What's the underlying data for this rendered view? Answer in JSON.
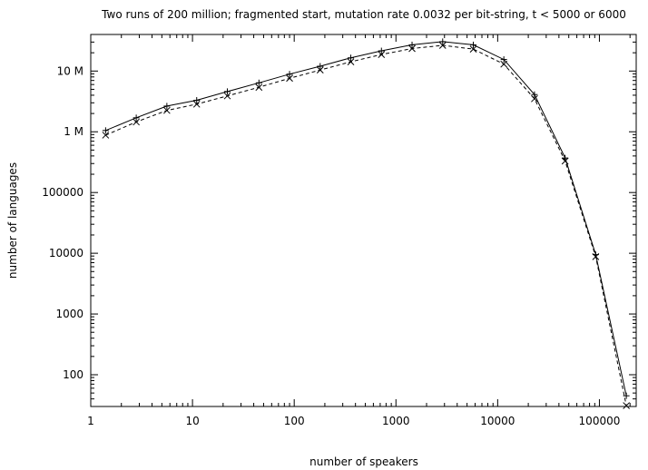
{
  "chart_data": {
    "type": "line",
    "title": "Two runs of 200 million; fragmented start, mutation rate 0.0032 per bit-string, t < 5000 or 6000",
    "xlabel": "number of speakers",
    "ylabel": "number of languages",
    "x_scale": "log",
    "y_scale": "log",
    "xlim": [
      1,
      230000
    ],
    "ylim": [
      30,
      40000000
    ],
    "grid": false,
    "legend": "none",
    "x_ticks": [
      {
        "value": 1,
        "label": "1"
      },
      {
        "value": 10,
        "label": "10"
      },
      {
        "value": 100,
        "label": "100"
      },
      {
        "value": 1000,
        "label": "1000"
      },
      {
        "value": 10000,
        "label": "10000"
      },
      {
        "value": 100000,
        "label": "100000"
      }
    ],
    "y_ticks": [
      {
        "value": 100,
        "label": "100"
      },
      {
        "value": 1000,
        "label": "1000"
      },
      {
        "value": 10000,
        "label": "10000"
      },
      {
        "value": 100000,
        "label": "100000"
      },
      {
        "value": 1000000,
        "label": "1 M"
      },
      {
        "value": 10000000,
        "label": "10 M"
      }
    ],
    "series": [
      {
        "style": "solid",
        "marker": "+",
        "color": "#000000",
        "x": [
          1.4,
          2.8,
          5.6,
          11,
          22,
          45,
          90,
          180,
          360,
          720,
          1440,
          2880,
          5760,
          11500,
          23000,
          46000,
          92000,
          184000
        ],
        "y": [
          1050000,
          1700000,
          2650000,
          3300000,
          4600000,
          6400000,
          8900000,
          12000000,
          16500000,
          21500000,
          27000000,
          30500000,
          27000000,
          15500000,
          4100000,
          370000,
          9500,
          45
        ]
      },
      {
        "style": "dashed",
        "marker": "x",
        "color": "#000000",
        "x": [
          1.4,
          2.8,
          5.6,
          11,
          22,
          45,
          90,
          180,
          360,
          720,
          1440,
          2880,
          5760,
          11500,
          23000,
          46000,
          92000,
          184000
        ],
        "y": [
          880000,
          1450000,
          2250000,
          2850000,
          3900000,
          5400000,
          7600000,
          10400000,
          14200000,
          18700000,
          23500000,
          26500000,
          23000000,
          13000000,
          3500000,
          330000,
          8800,
          31
        ]
      }
    ]
  }
}
